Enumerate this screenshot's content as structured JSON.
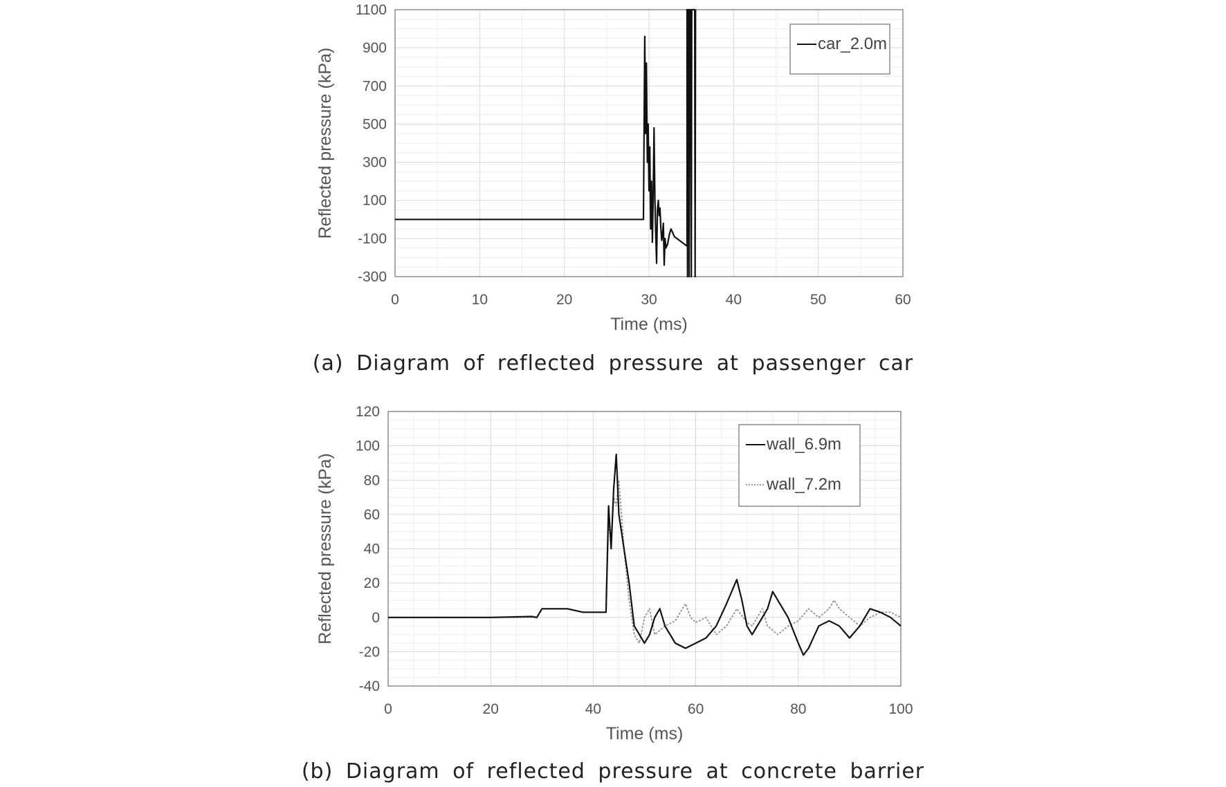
{
  "chart_data": [
    {
      "id": "a",
      "type": "line",
      "caption": "(a) Diagram of reflected pressure at passenger car",
      "xlabel": "Time (ms)",
      "ylabel": "Reflected pressure (kPa)",
      "xlim": [
        0,
        60
      ],
      "ylim": [
        -300,
        1100
      ],
      "xticks": [
        0,
        10,
        20,
        30,
        40,
        50,
        60
      ],
      "yticks": [
        1100,
        900,
        700,
        500,
        300,
        100,
        -100,
        -300
      ],
      "grid": true,
      "legend_position": "top-right",
      "series": [
        {
          "name": "car_2.0m",
          "color": "#111111",
          "style": "solid",
          "points": [
            [
              0,
              0
            ],
            [
              29.3,
              0
            ],
            [
              29.35,
              0
            ],
            [
              29.5,
              960
            ],
            [
              29.6,
              450
            ],
            [
              29.7,
              820
            ],
            [
              29.8,
              300
            ],
            [
              29.9,
              500
            ],
            [
              30.0,
              150
            ],
            [
              30.1,
              380
            ],
            [
              30.2,
              -50
            ],
            [
              30.3,
              200
            ],
            [
              30.4,
              -120
            ],
            [
              30.5,
              120
            ],
            [
              30.6,
              480
            ],
            [
              30.7,
              100
            ],
            [
              30.8,
              -80
            ],
            [
              30.9,
              -230
            ],
            [
              31.0,
              50
            ],
            [
              31.1,
              100
            ],
            [
              31.2,
              20
            ],
            [
              31.3,
              60
            ],
            [
              31.4,
              -40
            ],
            [
              31.5,
              -110
            ],
            [
              31.6,
              -80
            ],
            [
              31.7,
              -20
            ],
            [
              31.8,
              -240
            ],
            [
              31.9,
              -100
            ],
            [
              32.0,
              -150
            ],
            [
              32.2,
              -130
            ],
            [
              32.4,
              -80
            ],
            [
              32.6,
              -50
            ],
            [
              32.8,
              -70
            ],
            [
              33.0,
              -90
            ],
            [
              33.3,
              -100
            ],
            [
              33.6,
              -110
            ],
            [
              33.9,
              -120
            ],
            [
              34.2,
              -130
            ],
            [
              34.5,
              -140
            ],
            [
              34.5,
              1100
            ],
            [
              34.55,
              -300
            ],
            [
              34.6,
              1100
            ],
            [
              34.7,
              1100
            ],
            [
              34.75,
              -300
            ],
            [
              34.8,
              1100
            ],
            [
              34.9,
              1100
            ],
            [
              35.0,
              -300
            ],
            [
              35.05,
              1100
            ],
            [
              35.4,
              1100
            ],
            [
              35.45,
              -300
            ],
            [
              35.5,
              1100
            ]
          ]
        }
      ]
    },
    {
      "id": "b",
      "type": "line",
      "caption": "(b) Diagram of reflected pressure at concrete barrier",
      "xlabel": "Time (ms)",
      "ylabel": "Reflected pressure (kPa)",
      "xlim": [
        0,
        100
      ],
      "ylim": [
        -40,
        120
      ],
      "xticks": [
        0,
        20,
        40,
        60,
        80,
        100
      ],
      "yticks": [
        120,
        100,
        80,
        60,
        40,
        20,
        0,
        -20,
        -40
      ],
      "grid": true,
      "legend_position": "top-right",
      "series": [
        {
          "name": "wall_6.9m",
          "color": "#111111",
          "style": "solid",
          "points": [
            [
              0,
              0
            ],
            [
              10,
              0
            ],
            [
              20,
              0
            ],
            [
              28,
              0.5
            ],
            [
              29,
              0
            ],
            [
              30,
              5
            ],
            [
              35,
              5
            ],
            [
              38,
              3
            ],
            [
              40,
              3
            ],
            [
              42.5,
              3
            ],
            [
              43,
              65
            ],
            [
              43.5,
              40
            ],
            [
              44,
              75
            ],
            [
              44.5,
              95
            ],
            [
              45,
              60
            ],
            [
              46,
              40
            ],
            [
              47,
              20
            ],
            [
              48,
              -5
            ],
            [
              49,
              -10
            ],
            [
              50,
              -15
            ],
            [
              51,
              -10
            ],
            [
              52,
              0
            ],
            [
              53,
              5
            ],
            [
              54,
              -5
            ],
            [
              56,
              -15
            ],
            [
              58,
              -18
            ],
            [
              60,
              -15
            ],
            [
              62,
              -12
            ],
            [
              64,
              -5
            ],
            [
              66,
              8
            ],
            [
              67,
              15
            ],
            [
              68,
              22
            ],
            [
              69,
              10
            ],
            [
              70,
              -5
            ],
            [
              71,
              -10
            ],
            [
              72,
              -5
            ],
            [
              74,
              5
            ],
            [
              75,
              15
            ],
            [
              76,
              10
            ],
            [
              77,
              5
            ],
            [
              78,
              0
            ],
            [
              80,
              -15
            ],
            [
              81,
              -22
            ],
            [
              82,
              -18
            ],
            [
              84,
              -5
            ],
            [
              86,
              -2
            ],
            [
              88,
              -5
            ],
            [
              90,
              -12
            ],
            [
              92,
              -5
            ],
            [
              94,
              5
            ],
            [
              96,
              3
            ],
            [
              98,
              0
            ],
            [
              100,
              -5
            ]
          ]
        },
        {
          "name": "wall_7.2m",
          "color": "#9a9a9a",
          "style": "dotted",
          "points": [
            [
              0,
              0
            ],
            [
              20,
              0
            ],
            [
              28,
              0
            ],
            [
              29,
              0
            ],
            [
              30,
              5
            ],
            [
              35,
              5
            ],
            [
              38,
              3
            ],
            [
              40,
              3
            ],
            [
              42.5,
              3
            ],
            [
              43,
              55
            ],
            [
              43.5,
              45
            ],
            [
              44,
              70
            ],
            [
              44.5,
              65
            ],
            [
              45,
              80
            ],
            [
              46,
              40
            ],
            [
              47,
              10
            ],
            [
              48,
              -10
            ],
            [
              49,
              -15
            ],
            [
              50,
              0
            ],
            [
              51,
              5
            ],
            [
              52,
              -10
            ],
            [
              54,
              -5
            ],
            [
              56,
              -2
            ],
            [
              58,
              8
            ],
            [
              59,
              0
            ],
            [
              60,
              -3
            ],
            [
              62,
              0
            ],
            [
              64,
              -10
            ],
            [
              66,
              -5
            ],
            [
              67,
              0
            ],
            [
              68,
              5
            ],
            [
              70,
              -3
            ],
            [
              71,
              -5
            ],
            [
              72,
              0
            ],
            [
              73,
              5
            ],
            [
              74,
              -5
            ],
            [
              76,
              -10
            ],
            [
              78,
              -5
            ],
            [
              80,
              -2
            ],
            [
              82,
              5
            ],
            [
              84,
              0
            ],
            [
              86,
              5
            ],
            [
              87,
              10
            ],
            [
              88,
              5
            ],
            [
              90,
              0
            ],
            [
              92,
              -5
            ],
            [
              94,
              0
            ],
            [
              96,
              3
            ],
            [
              98,
              3
            ],
            [
              100,
              0
            ]
          ]
        }
      ]
    }
  ]
}
